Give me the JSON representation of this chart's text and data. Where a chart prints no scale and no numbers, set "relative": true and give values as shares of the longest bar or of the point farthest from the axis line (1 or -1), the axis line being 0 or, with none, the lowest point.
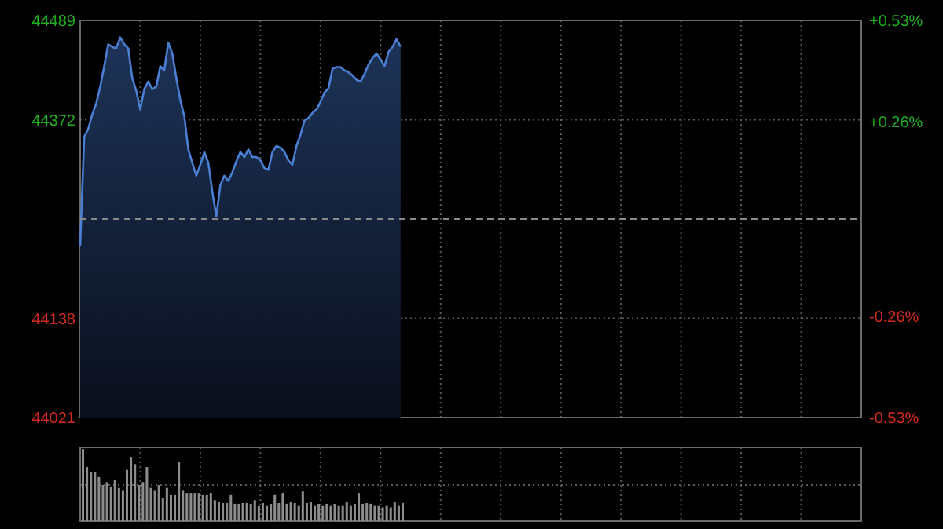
{
  "chart_data": [
    {
      "type": "area",
      "categories": [
        null,
        null,
        null,
        null,
        null,
        null,
        null,
        null,
        null,
        null,
        null,
        null,
        null,
        null,
        null,
        null,
        null,
        null,
        null,
        null,
        null,
        null,
        null,
        null,
        null,
        null,
        null,
        null,
        null,
        null,
        null,
        null,
        null,
        null,
        null,
        null,
        null,
        null,
        null,
        null,
        null,
        null,
        null,
        null,
        null,
        null,
        null,
        null,
        null,
        null,
        null,
        null,
        null,
        null,
        null,
        null,
        null,
        null,
        null,
        null,
        null,
        null,
        null,
        null,
        null,
        null,
        null,
        null,
        null,
        null,
        null,
        null,
        null,
        null,
        null,
        null,
        null,
        null,
        null,
        null,
        null,
        null,
        null,
        null,
        null,
        null,
        null,
        null,
        null,
        null,
        null,
        null,
        null,
        null,
        null,
        null,
        null,
        null,
        null,
        null,
        null,
        null,
        null,
        null,
        null,
        null,
        null,
        null,
        null,
        null,
        null,
        null,
        null,
        null,
        null,
        null,
        null,
        null,
        null,
        null,
        null,
        null,
        null,
        null,
        null,
        null,
        null,
        null,
        null,
        null,
        null,
        null,
        null,
        null,
        null,
        null,
        null,
        null,
        null,
        null,
        null,
        null,
        null,
        null,
        null,
        null,
        null,
        null,
        null,
        null,
        null,
        null,
        null,
        null,
        null,
        null,
        null,
        null,
        null,
        null,
        null,
        null,
        null,
        null,
        null,
        null,
        null,
        null,
        null,
        null,
        null,
        null,
        null,
        null,
        null,
        null,
        null,
        null,
        null,
        null,
        null,
        null,
        null,
        null,
        null,
        null,
        null,
        null,
        null,
        null,
        null,
        null,
        null,
        null,
        null,
        null
      ],
      "series": [
        {
          "color": "#4a7fd4",
          "values": [
            44223,
            44352,
            44361,
            44378,
            44391,
            44411,
            44435,
            44461,
            44458,
            44456,
            44469,
            44461,
            44456,
            44421,
            44406,
            44384,
            44408,
            44417,
            44408,
            44411,
            44435,
            44430,
            44463,
            44450,
            44421,
            44395,
            44376,
            44337,
            44321,
            44306,
            44319,
            44334,
            44321,
            44287,
            44258,
            44295,
            44306,
            44300,
            44310,
            44323,
            44334,
            44328,
            44337,
            44328,
            44328,
            44324,
            44315,
            44313,
            44334,
            44341,
            44339,
            44334,
            44324,
            44319,
            44341,
            44354,
            44371,
            44374,
            44380,
            44384,
            44393,
            44404,
            44409,
            44432,
            44434,
            44434,
            44430,
            44428,
            44424,
            44419,
            44417,
            44426,
            44437,
            44445,
            44450,
            44443,
            44435,
            44452,
            44458,
            44467,
            44458,
            null,
            null,
            null,
            null,
            null,
            null,
            null,
            null,
            null,
            null,
            null,
            null,
            null,
            null,
            null,
            null,
            null,
            null,
            null,
            null,
            null,
            null,
            null,
            null,
            null,
            null,
            null,
            null,
            null,
            null,
            null,
            null,
            null,
            null,
            null,
            null,
            null,
            null,
            null,
            null,
            null,
            null,
            null,
            null,
            null,
            null,
            null,
            null,
            null,
            null,
            null,
            null,
            null,
            null,
            null,
            null,
            null,
            null,
            null,
            null,
            null,
            null,
            null,
            null,
            null,
            null,
            null,
            null,
            null,
            null,
            null,
            null,
            null,
            null,
            null,
            null,
            null,
            null,
            null,
            null,
            null,
            null,
            null,
            null,
            null,
            null,
            null,
            null,
            null,
            null,
            null,
            null,
            null,
            null,
            null,
            null,
            null,
            null,
            null,
            null,
            null,
            null,
            null,
            null,
            null,
            null,
            null,
            null,
            null,
            null,
            null,
            null,
            null,
            null,
            null
          ]
        }
      ],
      "ylim": [
        44021,
        44489
      ],
      "yticks": [
        44021,
        44138,
        44372,
        44489
      ],
      "y2lim": [
        -0.53,
        0.53
      ],
      "y2ticks": [
        {
          "value": -0.53,
          "label": "-0.53%"
        },
        {
          "value": -0.26,
          "label": "-0.26%"
        },
        {
          "value": 0.26,
          "label": "+0.26%"
        },
        {
          "value": 0.53,
          "label": "+0.53%"
        }
      ],
      "ref_lines": [
        {
          "axis": "y",
          "value": 44255,
          "color": "#8a8a8a",
          "line_style": "dashed"
        }
      ],
      "grid": true,
      "tick_labels": "y"
    },
    {
      "type": "bar",
      "relative": true,
      "categories": [
        null,
        null,
        null,
        null,
        null,
        null,
        null,
        null,
        null,
        null,
        null,
        null,
        null,
        null,
        null,
        null,
        null,
        null,
        null,
        null,
        null,
        null,
        null,
        null,
        null,
        null,
        null,
        null,
        null,
        null,
        null,
        null,
        null,
        null,
        null,
        null,
        null,
        null,
        null,
        null,
        null,
        null,
        null,
        null,
        null,
        null,
        null,
        null,
        null,
        null,
        null,
        null,
        null,
        null,
        null,
        null,
        null,
        null,
        null,
        null,
        null,
        null,
        null,
        null,
        null,
        null,
        null,
        null,
        null,
        null,
        null,
        null,
        null,
        null,
        null,
        null,
        null,
        null,
        null,
        null,
        null,
        null,
        null,
        null,
        null,
        null,
        null,
        null,
        null,
        null,
        null,
        null,
        null,
        null,
        null,
        null,
        null,
        null,
        null,
        null,
        null,
        null,
        null,
        null,
        null,
        null,
        null,
        null,
        null,
        null,
        null,
        null,
        null,
        null,
        null,
        null,
        null,
        null,
        null,
        null,
        null,
        null,
        null,
        null,
        null,
        null,
        null,
        null,
        null,
        null,
        null,
        null,
        null,
        null,
        null,
        null,
        null,
        null,
        null,
        null,
        null,
        null,
        null,
        null,
        null,
        null,
        null,
        null,
        null,
        null,
        null,
        null,
        null,
        null,
        null,
        null,
        null,
        null,
        null,
        null,
        null,
        null,
        null,
        null,
        null,
        null,
        null,
        null,
        null,
        null,
        null,
        null,
        null,
        null,
        null,
        null,
        null,
        null,
        null,
        null,
        null,
        null,
        null,
        null,
        null,
        null,
        null,
        null,
        null,
        null,
        null,
        null,
        null,
        null,
        null,
        null
      ],
      "color": "#8c8c8c",
      "values": [
        1,
        0.75,
        0.68,
        0.68,
        0.61,
        0.5,
        0.54,
        0.48,
        0.57,
        0.46,
        0.43,
        0.71,
        0.89,
        0.79,
        0.5,
        0.54,
        0.75,
        0.46,
        0.43,
        0.5,
        0.32,
        0.46,
        0.36,
        0.36,
        0.82,
        0.43,
        0.39,
        0.39,
        0.39,
        0.39,
        0.36,
        0.36,
        0.39,
        0.29,
        0.26,
        0.25,
        0.25,
        0.36,
        0.24,
        0.24,
        0.25,
        0.25,
        0.24,
        0.29,
        0.21,
        0.25,
        0.21,
        0.24,
        0.36,
        0.25,
        0.39,
        0.24,
        0.26,
        0.25,
        0.21,
        0.41,
        0.25,
        0.26,
        0.21,
        0.24,
        0.21,
        0.24,
        0.21,
        0.24,
        0.21,
        0.21,
        0.26,
        0.21,
        0.24,
        0.39,
        0.24,
        0.25,
        0.24,
        0.21,
        0.21,
        0.19,
        0.21,
        0.19,
        0.26,
        0.21,
        0.25,
        null,
        null,
        null,
        null,
        null,
        null,
        null,
        null,
        null,
        null,
        null,
        null,
        null,
        null,
        null,
        null,
        null,
        null,
        null,
        null,
        null,
        null,
        null,
        null,
        null,
        null,
        null,
        null,
        null,
        null,
        null,
        null,
        null,
        null,
        null,
        null,
        null,
        null,
        null,
        null,
        null,
        null,
        null,
        null,
        null,
        null,
        null,
        null,
        null,
        null,
        null,
        null,
        null,
        null,
        null,
        null,
        null,
        null,
        null,
        null,
        null,
        null,
        null,
        null,
        null,
        null,
        null,
        null,
        null,
        null,
        null,
        null,
        null,
        null,
        null,
        null,
        null,
        null,
        null,
        null,
        null,
        null,
        null,
        null,
        null,
        null,
        null,
        null,
        null,
        null,
        null,
        null,
        null,
        null,
        null,
        null,
        null,
        null,
        null,
        null,
        null,
        null,
        null,
        null,
        null,
        null,
        null,
        null,
        null,
        null,
        null,
        null,
        null,
        null,
        null
      ],
      "grid": true,
      "tick_labels": false
    }
  ]
}
